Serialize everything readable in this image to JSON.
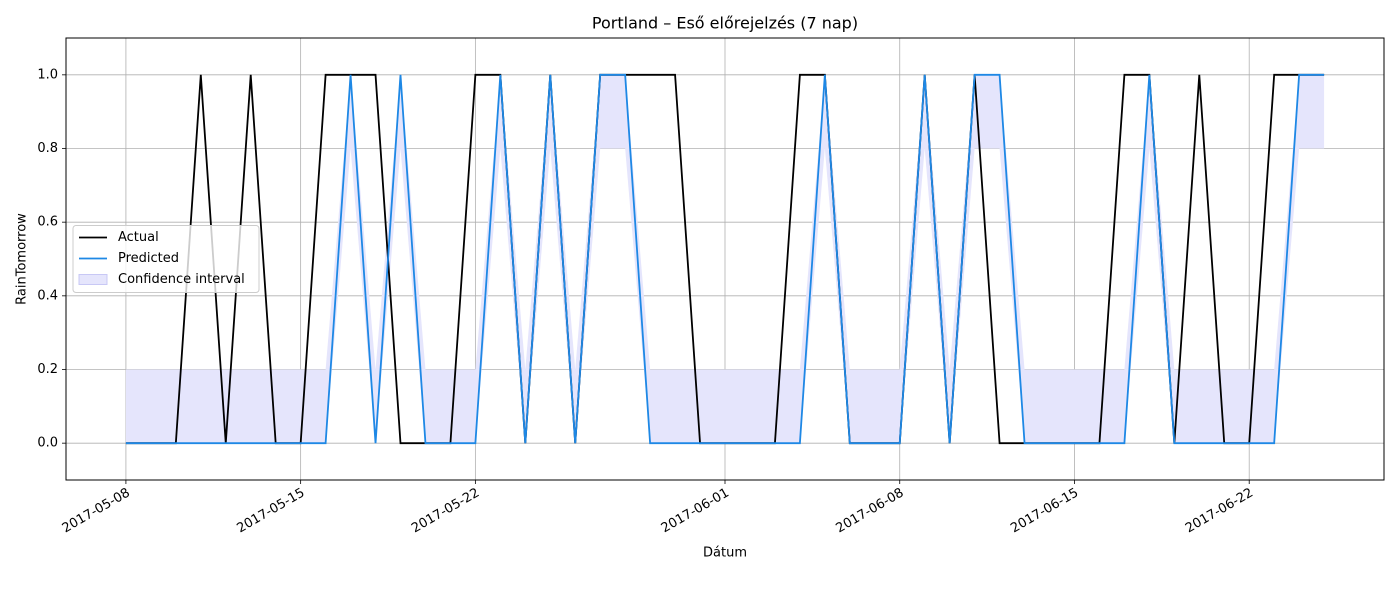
{
  "chart_data": {
    "type": "line",
    "title": "Portland – Eső előrejelzés (7 nap)",
    "xlabel": "Dátum",
    "ylabel": "RainTomorrow",
    "x": [
      "2017-05-08",
      "2017-05-09",
      "2017-05-10",
      "2017-05-11",
      "2017-05-12",
      "2017-05-13",
      "2017-05-14",
      "2017-05-15",
      "2017-05-16",
      "2017-05-17",
      "2017-05-18",
      "2017-05-19",
      "2017-05-20",
      "2017-05-21",
      "2017-05-22",
      "2017-05-23",
      "2017-05-24",
      "2017-05-25",
      "2017-05-26",
      "2017-05-27",
      "2017-05-28",
      "2017-05-29",
      "2017-05-30",
      "2017-05-31",
      "2017-06-01",
      "2017-06-02",
      "2017-06-03",
      "2017-06-04",
      "2017-06-05",
      "2017-06-06",
      "2017-06-07",
      "2017-06-08",
      "2017-06-09",
      "2017-06-10",
      "2017-06-11",
      "2017-06-12",
      "2017-06-13",
      "2017-06-14",
      "2017-06-15",
      "2017-06-16",
      "2017-06-17",
      "2017-06-18",
      "2017-06-19",
      "2017-06-20",
      "2017-06-21",
      "2017-06-22",
      "2017-06-23",
      "2017-06-24",
      "2017-06-25"
    ],
    "series": [
      {
        "name": "Actual",
        "color": "#000000",
        "values": [
          0,
          0,
          0,
          1,
          0,
          1,
          0,
          0,
          1,
          1,
          1,
          0,
          0,
          0,
          1,
          1,
          0,
          1,
          0,
          1,
          1,
          1,
          1,
          0,
          0,
          0,
          0,
          1,
          1,
          0,
          0,
          0,
          1,
          0,
          1,
          0,
          0,
          0,
          0,
          0,
          1,
          1,
          0,
          1,
          0,
          0,
          1,
          1,
          1
        ]
      },
      {
        "name": "Predicted",
        "color": "#1e88e5",
        "values": [
          0,
          0,
          0,
          0,
          0,
          0,
          0,
          0,
          0,
          1,
          0,
          1,
          0,
          0,
          0,
          1,
          0,
          1,
          0,
          1,
          1,
          0,
          0,
          0,
          0,
          0,
          0,
          0,
          1,
          0,
          0,
          0,
          1,
          0,
          1,
          1,
          0,
          0,
          0,
          0,
          0,
          1,
          0,
          0,
          0,
          0,
          0,
          1,
          1
        ]
      }
    ],
    "confidence_interval": {
      "name": "Confidence interval",
      "color": "#e5e5fc",
      "lower": [
        0,
        0,
        0,
        0,
        0,
        0,
        0,
        0,
        0,
        0.8,
        0,
        0.8,
        0,
        0,
        0,
        0.8,
        0,
        0.8,
        0,
        0.8,
        0.8,
        0,
        0,
        0,
        0,
        0,
        0,
        0,
        0.8,
        0,
        0,
        0,
        0.8,
        0,
        0.8,
        0.8,
        0,
        0,
        0,
        0,
        0,
        0.8,
        0,
        0,
        0,
        0,
        0,
        0.8,
        0.8
      ],
      "upper": [
        0.2,
        0.2,
        0.2,
        0.2,
        0.2,
        0.2,
        0.2,
        0.2,
        0.2,
        1,
        0.2,
        1,
        0.2,
        0.2,
        0.2,
        1,
        0.2,
        1,
        0.2,
        1,
        1,
        0.2,
        0.2,
        0.2,
        0.2,
        0.2,
        0.2,
        0.2,
        1,
        0.2,
        0.2,
        0.2,
        1,
        0.2,
        1,
        1,
        0.2,
        0.2,
        0.2,
        0.2,
        0.2,
        1,
        0.2,
        0.2,
        0.2,
        0.2,
        0.2,
        1,
        1
      ]
    },
    "xlim": [
      "2017-05-05T14:24:00Z",
      "2017-06-27T09:36:00Z"
    ],
    "xticks": [
      "2017-05-08",
      "2017-05-15",
      "2017-05-22",
      "2017-06-01",
      "2017-06-08",
      "2017-06-15",
      "2017-06-22"
    ],
    "ylim": [
      -0.1,
      1.1
    ],
    "yticks": [
      {
        "value": 0,
        "label": "0.0"
      },
      0.2,
      0.4,
      0.6,
      0.8,
      {
        "value": 1,
        "label": "1.0"
      }
    ],
    "grid": true,
    "legend": "center left"
  }
}
